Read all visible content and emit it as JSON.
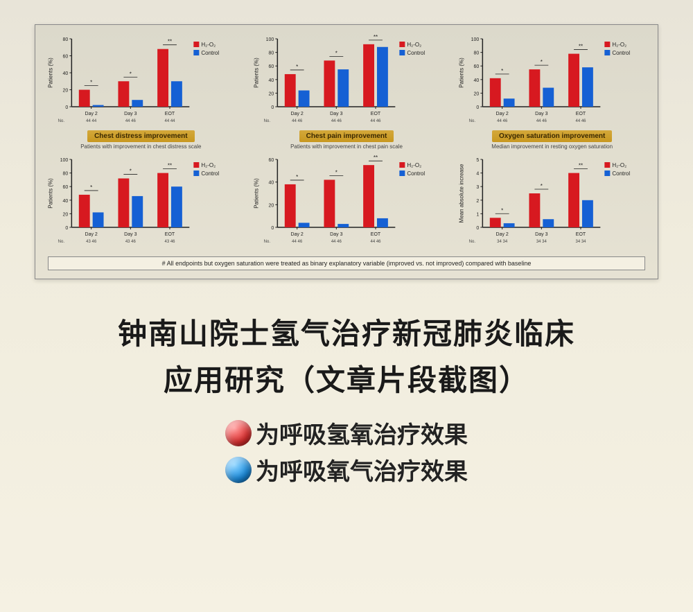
{
  "page": {
    "background_gradient": [
      "#e8e4d8",
      "#f5f1e3"
    ],
    "panel_background": "#e6e2d3"
  },
  "colors": {
    "h2o2_bar": "#d71920",
    "control_bar": "#1560d4",
    "axis": "#222222",
    "gold_label_bg": "#c89820",
    "gold_label_text": "#3a2800",
    "legend_red": "#e03030",
    "legend_blue": "#1a8de0"
  },
  "chart_common": {
    "type": "grouped-bar",
    "categories": [
      "Day 2",
      "Day 3",
      "EOT"
    ],
    "series_names": [
      "H₂-O₂",
      "Control"
    ],
    "bar_width": 0.35,
    "label_fontsize": 8,
    "tick_fontsize": 7,
    "legend_fontsize": 8,
    "significance_stars": [
      "*",
      "*",
      "**"
    ]
  },
  "charts": [
    {
      "row": 0,
      "col": 0,
      "ylim": [
        0,
        80
      ],
      "ytick_step": 20,
      "ylabel": "Patients (%)",
      "h2o2": [
        20,
        30,
        68
      ],
      "control": [
        2,
        8,
        30
      ],
      "n_labels": [
        "44 44",
        "44 46",
        "44 44"
      ],
      "gold_label": "Chest distress improvement",
      "subtitle": "Patients with improvement in chest distress scale"
    },
    {
      "row": 0,
      "col": 1,
      "ylim": [
        0,
        100
      ],
      "ytick_step": 20,
      "ylabel": "Patients (%)",
      "h2o2": [
        48,
        68,
        92
      ],
      "control": [
        24,
        55,
        88
      ],
      "n_labels": [
        "44 46",
        "44 46",
        "44 46"
      ],
      "gold_label": "Chest pain improvement",
      "subtitle": "Patients with improvement in chest pain scale"
    },
    {
      "row": 0,
      "col": 2,
      "ylim": [
        0,
        100
      ],
      "ytick_step": 20,
      "ylabel": "Patients (%)",
      "h2o2": [
        42,
        55,
        78
      ],
      "control": [
        12,
        28,
        58
      ],
      "n_labels": [
        "44 46",
        "44 46",
        "44 46"
      ],
      "gold_label": "Oxygen saturation improvement",
      "subtitle": "Median improvement in resting oxygen saturation"
    },
    {
      "row": 1,
      "col": 0,
      "ylim": [
        0,
        100
      ],
      "ytick_step": 20,
      "ylabel": "Patients (%)",
      "h2o2": [
        48,
        72,
        80
      ],
      "control": [
        22,
        46,
        60
      ],
      "n_labels": [
        "43 46",
        "43 46",
        "43 46"
      ],
      "gold_label": "",
      "subtitle": ""
    },
    {
      "row": 1,
      "col": 1,
      "ylim": [
        0,
        60
      ],
      "ytick_step": 20,
      "ylabel": "Patients (%)",
      "h2o2": [
        38,
        42,
        55
      ],
      "control": [
        4,
        3,
        8
      ],
      "n_labels": [
        "44 46",
        "44 46",
        "44 46"
      ],
      "gold_label": "",
      "subtitle": ""
    },
    {
      "row": 1,
      "col": 2,
      "ylim": [
        0,
        5
      ],
      "ytick_step": 1,
      "ylabel": "Mean absolute increase",
      "h2o2": [
        0.7,
        2.5,
        4.0
      ],
      "control": [
        0.3,
        0.6,
        2.0
      ],
      "n_labels": [
        "34 34",
        "34 34",
        "34 34"
      ],
      "gold_label": "",
      "subtitle": ""
    }
  ],
  "footnote": "# All endpoints but oxygen saturation were treated as binary explanatory variable (improved vs. not improved) compared with baseline",
  "title": {
    "line1": "钟南山院士氢气治疗新冠肺炎临床",
    "line2": "应用研究（文章片段截图）"
  },
  "legend": {
    "red_text": "为呼吸氢氧治疗效果",
    "blue_text": "为呼吸氧气治疗效果"
  }
}
